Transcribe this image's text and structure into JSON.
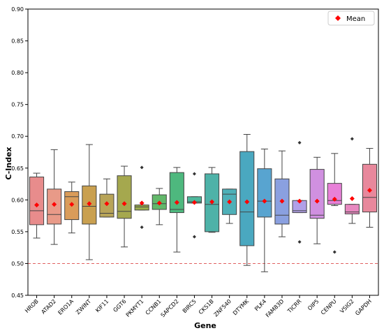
{
  "chart_data": {
    "type": "box",
    "title": "",
    "xlabel": "Gene",
    "ylabel": "C-Index",
    "ylim": [
      0.45,
      0.9
    ],
    "yticks": [
      "0.45",
      "0.50",
      "0.55",
      "0.60",
      "0.65",
      "0.70",
      "0.75",
      "0.80",
      "0.85",
      "0.90"
    ],
    "reference_line": {
      "y": 0.5,
      "color": "#e06060",
      "style": "dashed"
    },
    "legend": {
      "label": "Mean",
      "position": "top-right",
      "marker_color": "#ff0000"
    },
    "categories": [
      "HROB",
      "ATAD2",
      "ERO1A",
      "ZWINT",
      "KIF11",
      "GGT6",
      "PKMYT1",
      "CCNB1",
      "SAPCD2",
      "BIRC5",
      "CKS1B",
      "ZNF540",
      "DTYMK",
      "PLK4",
      "FAM83D",
      "TICRR",
      "OIP5",
      "CENPU",
      "VSIG2",
      "GAPDH"
    ],
    "colors": [
      "#e88c8c",
      "#e89a88",
      "#da9c5a",
      "#c9a050",
      "#b8a458",
      "#a5a84e",
      "#9aac4e",
      "#62b86a",
      "#4eb87e",
      "#4eb89c",
      "#4eb2a8",
      "#4eb0b8",
      "#4aa8c0",
      "#58a4d0",
      "#8aa0e0",
      "#b0a0e8",
      "#d090e0",
      "#e880d8",
      "#e888c0",
      "#e8889c"
    ],
    "boxes": [
      {
        "whislo": 0.54,
        "q1": 0.561,
        "median": 0.583,
        "q3": 0.636,
        "whishi": 0.642,
        "mean": 0.592,
        "fliers": []
      },
      {
        "whislo": 0.53,
        "q1": 0.562,
        "median": 0.577,
        "q3": 0.617,
        "whishi": 0.679,
        "mean": 0.593,
        "fliers": []
      },
      {
        "whislo": 0.548,
        "q1": 0.569,
        "median": 0.605,
        "q3": 0.613,
        "whishi": 0.628,
        "mean": 0.593,
        "fliers": []
      },
      {
        "whislo": 0.506,
        "q1": 0.562,
        "median": 0.59,
        "q3": 0.622,
        "whishi": 0.687,
        "mean": 0.594,
        "fliers": []
      },
      {
        "whislo": 0.573,
        "q1": 0.573,
        "median": 0.579,
        "q3": 0.609,
        "whishi": 0.633,
        "mean": 0.594,
        "fliers": []
      },
      {
        "whislo": 0.526,
        "q1": 0.571,
        "median": 0.582,
        "q3": 0.638,
        "whishi": 0.653,
        "mean": 0.594,
        "fliers": []
      },
      {
        "whislo": 0.584,
        "q1": 0.584,
        "median": 0.589,
        "q3": 0.592,
        "whishi": 0.592,
        "mean": 0.595,
        "fliers": [
          0.651,
          0.557
        ]
      },
      {
        "whislo": 0.561,
        "q1": 0.585,
        "median": 0.594,
        "q3": 0.608,
        "whishi": 0.618,
        "mean": 0.595,
        "fliers": []
      },
      {
        "whislo": 0.518,
        "q1": 0.58,
        "median": 0.585,
        "q3": 0.643,
        "whishi": 0.651,
        "mean": 0.596,
        "fliers": []
      },
      {
        "whislo": 0.595,
        "q1": 0.595,
        "median": 0.597,
        "q3": 0.605,
        "whishi": 0.605,
        "mean": 0.596,
        "fliers": [
          0.641,
          0.542
        ]
      },
      {
        "whislo": 0.549,
        "q1": 0.55,
        "median": 0.593,
        "q3": 0.641,
        "whishi": 0.651,
        "mean": 0.597,
        "fliers": []
      },
      {
        "whislo": 0.563,
        "q1": 0.577,
        "median": 0.609,
        "q3": 0.617,
        "whishi": 0.617,
        "mean": 0.597,
        "fliers": []
      },
      {
        "whislo": 0.497,
        "q1": 0.528,
        "median": 0.581,
        "q3": 0.676,
        "whishi": 0.703,
        "mean": 0.597,
        "fliers": []
      },
      {
        "whislo": 0.487,
        "q1": 0.573,
        "median": 0.598,
        "q3": 0.649,
        "whishi": 0.68,
        "mean": 0.598,
        "fliers": []
      },
      {
        "whislo": 0.542,
        "q1": 0.562,
        "median": 0.576,
        "q3": 0.633,
        "whishi": 0.677,
        "mean": 0.598,
        "fliers": []
      },
      {
        "whislo": 0.58,
        "q1": 0.58,
        "median": 0.583,
        "q3": 0.599,
        "whishi": 0.599,
        "mean": 0.598,
        "fliers": [
          0.69,
          0.534
        ]
      },
      {
        "whislo": 0.531,
        "q1": 0.571,
        "median": 0.576,
        "q3": 0.648,
        "whishi": 0.667,
        "mean": 0.598,
        "fliers": []
      },
      {
        "whislo": 0.591,
        "q1": 0.593,
        "median": 0.599,
        "q3": 0.626,
        "whishi": 0.673,
        "mean": 0.601,
        "fliers": [
          0.518
        ]
      },
      {
        "whislo": 0.563,
        "q1": 0.578,
        "median": 0.581,
        "q3": 0.593,
        "whishi": 0.593,
        "mean": 0.602,
        "fliers": [
          0.696
        ]
      },
      {
        "whislo": 0.557,
        "q1": 0.581,
        "median": 0.604,
        "q3": 0.656,
        "whishi": 0.681,
        "mean": 0.615,
        "fliers": []
      }
    ]
  }
}
